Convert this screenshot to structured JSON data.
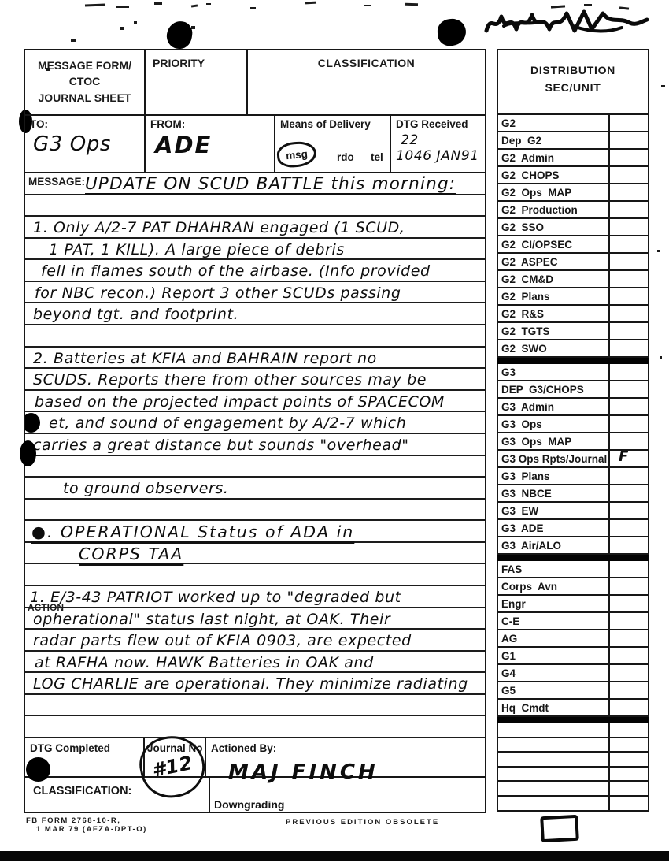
{
  "colors": {
    "ink": "#141414",
    "paper": "#ffffff"
  },
  "form": {
    "header": {
      "title": [
        "MESSAGE FORM/",
        "CTOC",
        "JOURNAL SHEET"
      ],
      "priority_label": "PRIORITY",
      "classification_label": "CLASSIFICATION"
    },
    "fields": {
      "to_label": "TO:",
      "to_value": "G3 Ops",
      "from_label": "FROM:",
      "from_value": "ADE",
      "delivery_label": "Means of Delivery",
      "delivery_options": {
        "msg": "msg",
        "rdo": "rdo",
        "tel": "tel"
      },
      "delivery_selected": "msg",
      "dtg_received_label": "DTG Received",
      "dtg_received_line1": "22",
      "dtg_received_line2": "1046 JAN91"
    },
    "message_label": "MESSAGE:",
    "action_label": "ACTION",
    "message_lines": [
      {
        "t": "UPDATE ON SCUD BATTLE this morning:",
        "x": 76,
        "u": true,
        "cls": "title"
      },
      {
        "t": ""
      },
      {
        "t": "1. Only A/2-7 PAT DHAHRAN engaged (1 SCUD,",
        "x": 10
      },
      {
        "t": "1 PAT, 1 KILL). A large piece of debris",
        "x": 30
      },
      {
        "t": "fell in flames south of the airbase. (Info provided",
        "x": 20
      },
      {
        "t": "for NBC recon.) Report 3 other SCUDs passing",
        "x": 12
      },
      {
        "t": "beyond tgt. and footprint.",
        "x": 10
      },
      {
        "t": ""
      },
      {
        "t": "2. Batteries at KFIA and BAHRAIN report no",
        "x": 10
      },
      {
        "t": "SCUDS. Reports there from other sources may be",
        "x": 10
      },
      {
        "t": "based on the projected impact points of SPACECOM",
        "x": 12
      },
      {
        "t": "et, and sound of engagement by A/2-7 which",
        "x": 30,
        "blob": true
      },
      {
        "t": "carries a great distance but sounds \"overhead\"",
        "x": 10
      },
      {
        "t": ""
      },
      {
        "t": "to ground observers.",
        "x": 48
      },
      {
        "t": ""
      },
      {
        "t": "●.   OPERATIONAL Status of ADA in",
        "x": 8,
        "u": true,
        "cls": "hdr2"
      },
      {
        "t": "CORPS TAA",
        "x": 68,
        "u": true,
        "cls": "hdr2"
      },
      {
        "t": ""
      },
      {
        "t": "1. E/3-43 PATRIOT worked up to \"degraded but",
        "x": 6
      },
      {
        "t": "opherational\" status last night, at OAK. Their",
        "x": 10
      },
      {
        "t": "radar parts flew out of KFIA 0903, are expected",
        "x": 10
      },
      {
        "t": "at RAFHA now. HAWK Batteries in OAK and",
        "x": 12
      },
      {
        "t": "LOG CHARLIE are operational. They minimize radiating",
        "x": 10
      },
      {
        "t": ""
      },
      {
        "t": ""
      }
    ],
    "bottom": {
      "dtg_completed_label": "DTG  Completed",
      "journal_no_label": "Journal  No",
      "journal_no_value": "#12",
      "actioned_by_label": "Actioned  By:",
      "actioned_by_value": "MAJ FINCH",
      "classification_label": "CLASSIFICATION:",
      "downgrading_label": "Downgrading"
    },
    "footer": {
      "form_number": "FB  FORM  2768-10-R,",
      "form_date": "1  MAR  79  (AFZA-DPT-O)",
      "obsolete_note": "PREVIOUS  EDITION  OBSOLETE"
    }
  },
  "distribution": {
    "title": [
      "DISTRIBUTION",
      "SEC/UNIT"
    ],
    "groups": [
      [
        {
          "label": "G2"
        },
        {
          "label": "Dep  G2"
        },
        {
          "label": "G2  Admin"
        },
        {
          "label": "G2  CHOPS"
        },
        {
          "label": "G2  Ops  MAP"
        },
        {
          "label": "G2  Production"
        },
        {
          "label": "G2  SSO"
        },
        {
          "label": "G2  CI/OPSEC"
        },
        {
          "label": "G2  ASPEC"
        },
        {
          "label": "G2  CM&D"
        },
        {
          "label": "G2  Plans"
        },
        {
          "label": "G2  R&S"
        },
        {
          "label": "G2  TGTS"
        },
        {
          "label": "G2  SWO"
        }
      ],
      [
        {
          "label": "G3"
        },
        {
          "label": "DEP  G3/CHOPS"
        },
        {
          "label": "G3  Admin"
        },
        {
          "label": "G3  Ops"
        },
        {
          "label": "G3  Ops  MAP"
        },
        {
          "label": "G3 Ops Rpts/Journal",
          "mark": "F"
        },
        {
          "label": "G3  Plans"
        },
        {
          "label": "G3  NBCE"
        },
        {
          "label": "G3  EW"
        },
        {
          "label": "G3  ADE"
        },
        {
          "label": "G3  Air/ALO"
        }
      ],
      [
        {
          "label": "FAS"
        },
        {
          "label": "Corps  Avn"
        },
        {
          "label": "Engr"
        },
        {
          "label": "C-E"
        },
        {
          "label": "AG"
        },
        {
          "label": "G1"
        },
        {
          "label": "G4"
        },
        {
          "label": "G5"
        },
        {
          "label": "Hq  Cmdt"
        }
      ]
    ],
    "blank_rows": 6
  }
}
